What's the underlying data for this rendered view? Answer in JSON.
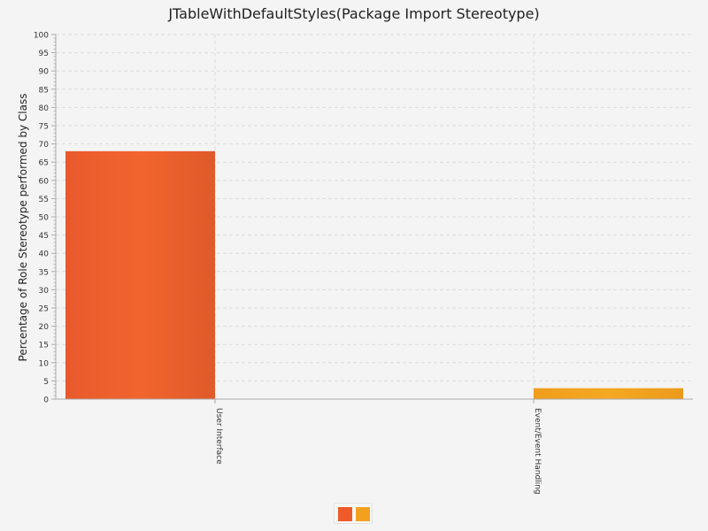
{
  "chart_data": {
    "type": "bar",
    "title": "JTableWithDefaultStyles(Package Import Stereotype)",
    "xlabel": "",
    "ylabel": "Percentage of Role Stereotype performed by Class",
    "ylim": [
      0,
      100
    ],
    "ytick_step": 5,
    "grid": true,
    "legend_position": "bottom",
    "categories": [
      "User Interface",
      "Event/Event Handling"
    ],
    "series": [
      {
        "values": [
          68,
          0
        ]
      },
      {
        "values": [
          0,
          3
        ]
      }
    ],
    "colors": [
      "#ee5a2a",
      "#f2a11f"
    ]
  }
}
